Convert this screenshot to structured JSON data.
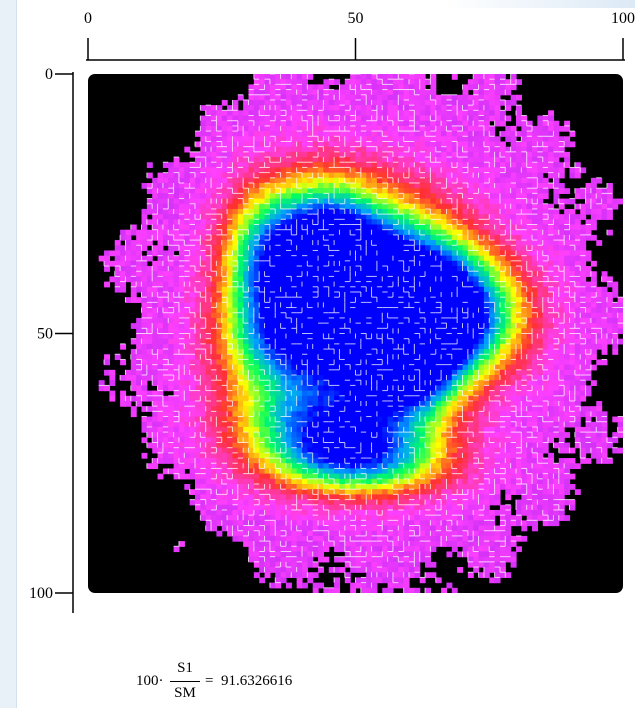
{
  "chart_data": {
    "type": "heatmap",
    "title": "",
    "xlabel": "",
    "ylabel": "",
    "x_range": [
      0,
      100
    ],
    "y_range": [
      0,
      100
    ],
    "y_inverted": true,
    "x_ticks": [
      "0",
      "50",
      "100"
    ],
    "y_ticks": [
      "0",
      "50",
      "100"
    ],
    "colormap": [
      "#000000",
      "#a020f0",
      "#ff40ff",
      "#ff3030",
      "#ffff00",
      "#00ff60",
      "#00a0ff",
      "#0000ff"
    ],
    "grid_overlay": true,
    "background_outside_mask": "#000000",
    "hotspots": [
      {
        "x": 34,
        "y": 35,
        "level": 0.72,
        "rx": 4,
        "ry": 6
      },
      {
        "x": 45,
        "y": 35,
        "level": 0.95,
        "rx": 4,
        "ry": 6
      },
      {
        "x": 56,
        "y": 41,
        "level": 0.98,
        "rx": 6,
        "ry": 7
      },
      {
        "x": 66,
        "y": 46,
        "level": 1.0,
        "rx": 6,
        "ry": 5
      },
      {
        "x": 59,
        "y": 54,
        "level": 0.92,
        "rx": 4,
        "ry": 5
      },
      {
        "x": 35,
        "y": 51,
        "level": 0.55,
        "rx": 5,
        "ry": 5
      },
      {
        "x": 48,
        "y": 51,
        "level": 0.5,
        "rx": 5,
        "ry": 4
      },
      {
        "x": 44,
        "y": 67,
        "level": 0.7,
        "rx": 7,
        "ry": 4
      },
      {
        "x": 51,
        "y": 74,
        "level": 0.58,
        "rx": 7,
        "ry": 3
      }
    ]
  },
  "formula": {
    "prefix": "100·",
    "numerator": "S1",
    "denominator": "SM",
    "equals": "=",
    "result": "91.6326616"
  }
}
